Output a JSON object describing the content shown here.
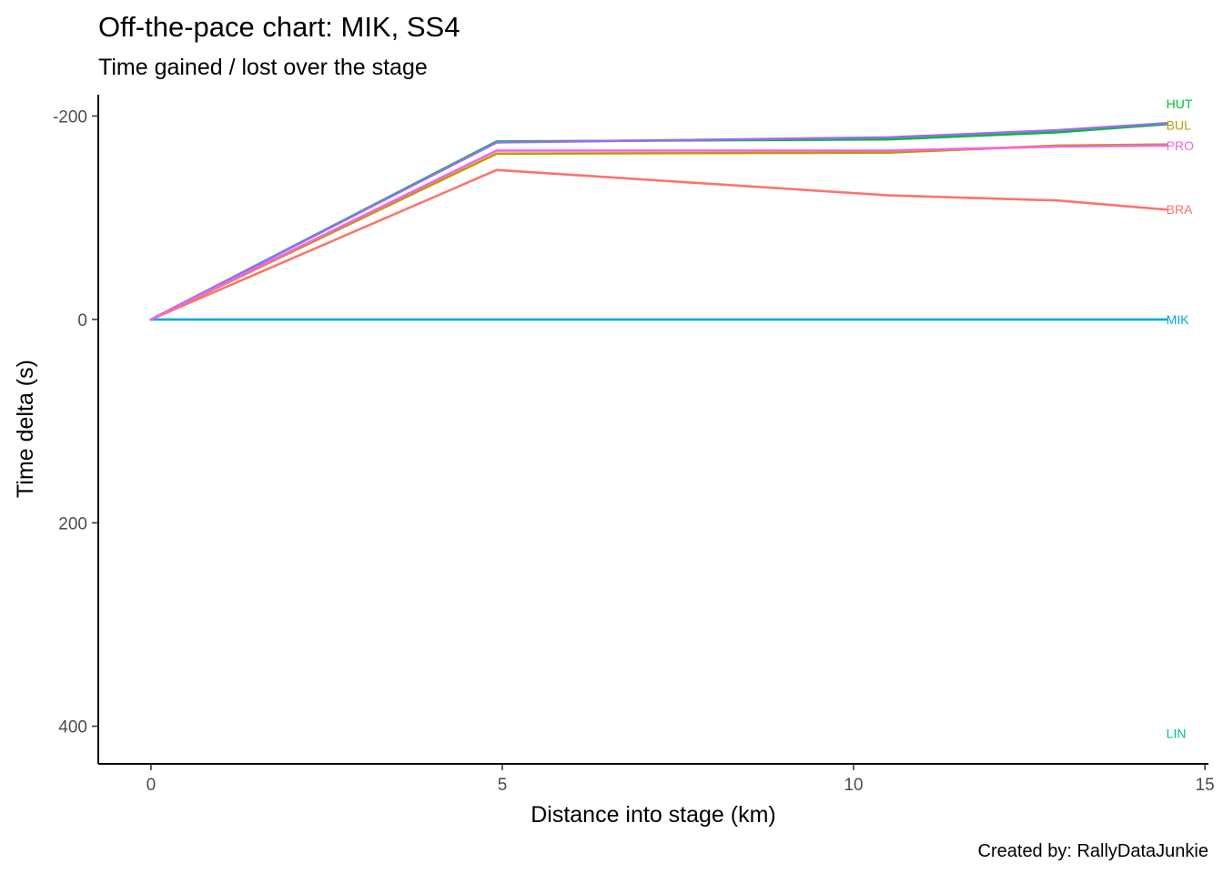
{
  "chart_data": {
    "type": "line",
    "title": "Off-the-pace chart: MIK, SS4",
    "subtitle": "Time gained / lost over the stage",
    "xlabel": "Distance into stage (km)",
    "ylabel": "Time delta (s)",
    "caption": "Created by: RallyDataJunkie",
    "xlim": [
      -0.75,
      15.05
    ],
    "ylim": [
      -221,
      437
    ],
    "y_reversed": true,
    "x_ticks": [
      0,
      5,
      10,
      15
    ],
    "x_tick_labels": [
      "0",
      "5",
      "10",
      "15"
    ],
    "y_ticks": [
      -200,
      0,
      200,
      400
    ],
    "y_tick_labels": [
      "-200",
      "0",
      "200",
      "400"
    ],
    "grid": false,
    "legend": "none",
    "series": [
      {
        "name": "BRA",
        "color": "#F8766D",
        "label_y": -108,
        "points": [
          [
            0,
            0
          ],
          [
            4.92,
            -147
          ],
          [
            10.5,
            -122
          ],
          [
            12.9,
            -117
          ],
          [
            14.45,
            -108
          ]
        ]
      },
      {
        "name": "BUL",
        "color": "#B79F00",
        "label_y": -191,
        "points": [
          [
            0,
            0
          ],
          [
            4.92,
            -163
          ],
          [
            10.5,
            -164
          ],
          [
            12.9,
            -171
          ],
          [
            14.45,
            -172
          ]
        ]
      },
      {
        "name": "HUT",
        "color": "#00BA38",
        "label_y": -212,
        "points": [
          [
            0,
            0
          ],
          [
            4.92,
            -175
          ],
          [
            10.5,
            -177
          ],
          [
            12.9,
            -184
          ],
          [
            14.45,
            -192
          ]
        ]
      },
      {
        "name": "LIN",
        "color": "#00BFC4",
        "label_y": 407,
        "points": []
      },
      {
        "name": "MIK",
        "color": "#00A9E0",
        "label_y": 0,
        "points": [
          [
            0,
            0
          ],
          [
            4.92,
            0
          ],
          [
            10.5,
            0
          ],
          [
            12.9,
            0
          ],
          [
            14.45,
            0
          ]
        ]
      },
      {
        "name": "",
        "color": "#9B6CF0",
        "label_y": null,
        "points": [
          [
            0,
            0
          ],
          [
            4.92,
            -174
          ],
          [
            10.5,
            -179
          ],
          [
            12.9,
            -186
          ],
          [
            14.45,
            -193
          ]
        ]
      },
      {
        "name": "PRO",
        "color": "#F564E3",
        "label_y": -171,
        "points": [
          [
            0,
            0
          ],
          [
            4.92,
            -166
          ],
          [
            10.5,
            -166
          ],
          [
            12.9,
            -170
          ],
          [
            14.45,
            -171
          ]
        ]
      }
    ]
  },
  "series_label_colors": {
    "BRA": "#F8766D",
    "BUL": "#B79F00",
    "HUT": "#00BA38",
    "LIN": "#00C19A",
    "MIK": "#00A9E0",
    "PRO": "#F564E3"
  }
}
